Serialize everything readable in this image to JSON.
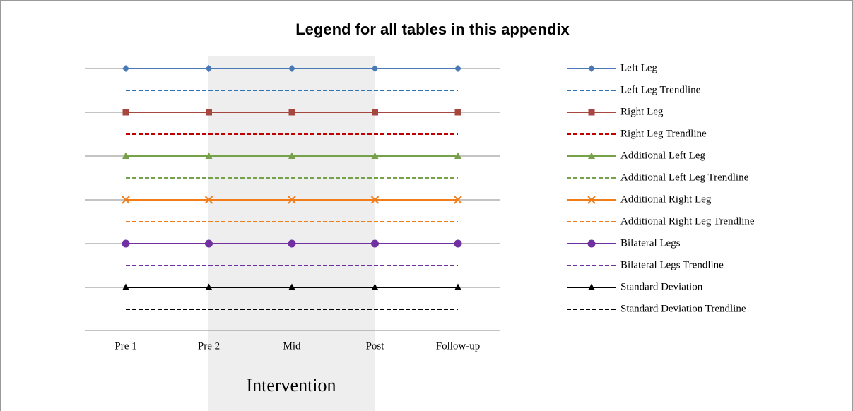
{
  "chart_data": {
    "type": "line",
    "title": "Legend for all tables in this appendix",
    "categories": [
      "Pre 1",
      "Pre 2",
      "Mid",
      "Post",
      "Follow-up"
    ],
    "annotation": "Intervention",
    "series": [
      {
        "name": "Left Leg",
        "color": "#4a7ab5",
        "marker": "diamond",
        "style": "solid"
      },
      {
        "name": "Left Leg Trendline",
        "color": "#2e75b6",
        "marker": "none",
        "style": "dashed"
      },
      {
        "name": "Right Leg",
        "color": "#a5473f",
        "marker": "square",
        "style": "solid"
      },
      {
        "name": "Right Leg Trendline",
        "color": "#c00000",
        "marker": "none",
        "style": "dashed"
      },
      {
        "name": "Additional Left Leg",
        "color": "#77a04a",
        "marker": "triangle",
        "style": "solid"
      },
      {
        "name": "Additional Left Leg Trendline",
        "color": "#77a04a",
        "marker": "none",
        "style": "dashed"
      },
      {
        "name": "Additional Right Leg",
        "color": "#f07c1a",
        "marker": "x",
        "style": "solid"
      },
      {
        "name": "Additional Right Leg Trendline",
        "color": "#f07c1a",
        "marker": "none",
        "style": "dashed"
      },
      {
        "name": "Bilateral Legs",
        "color": "#7030a0",
        "marker": "circle",
        "style": "solid"
      },
      {
        "name": "Bilateral Legs Trendline",
        "color": "#7030a0",
        "marker": "none",
        "style": "dashed"
      },
      {
        "name": "Standard Deviation",
        "color": "#000000",
        "marker": "triangle",
        "style": "solid"
      },
      {
        "name": "Standard Deviation Trendline",
        "color": "#000000",
        "marker": "none",
        "style": "dashed"
      }
    ]
  }
}
